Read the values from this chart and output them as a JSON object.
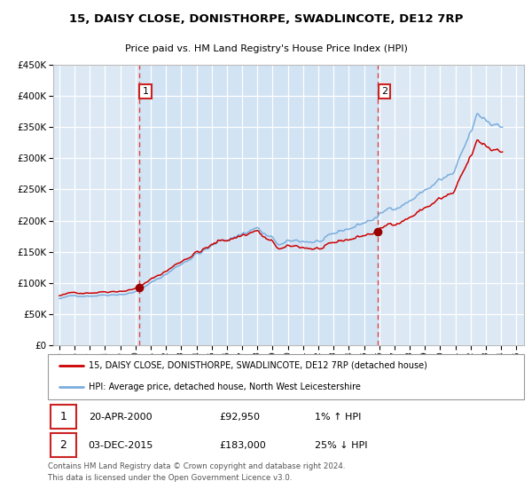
{
  "title": "15, DAISY CLOSE, DONISTHORPE, SWADLINCOTE, DE12 7RP",
  "subtitle": "Price paid vs. HM Land Registry's House Price Index (HPI)",
  "legend_line1": "15, DAISY CLOSE, DONISTHORPE, SWADLINCOTE, DE12 7RP (detached house)",
  "legend_line2": "HPI: Average price, detached house, North West Leicestershire",
  "annotation1_label": "1",
  "annotation1_date": "20-APR-2000",
  "annotation1_price": "£92,950",
  "annotation1_hpi": "1% ↑ HPI",
  "annotation2_label": "2",
  "annotation2_date": "03-DEC-2015",
  "annotation2_price": "£183,000",
  "annotation2_hpi": "25% ↓ HPI",
  "footer": "Contains HM Land Registry data © Crown copyright and database right 2024.\nThis data is licensed under the Open Government Licence v3.0.",
  "purchase1_year": 2000.25,
  "purchase1_value": 92950,
  "purchase2_year": 2015.92,
  "purchase2_value": 183000,
  "ylim": [
    0,
    450000
  ],
  "xlim_start": 1994.6,
  "xlim_end": 2025.5,
  "background_color": "#dce9f5",
  "grid_color": "#ffffff",
  "hpi_line_color": "#7aaddd",
  "price_line_color": "#cc0000",
  "marker_color": "#990000",
  "vline_color": "#dd4444",
  "annotation_box_color": "#cc2222"
}
